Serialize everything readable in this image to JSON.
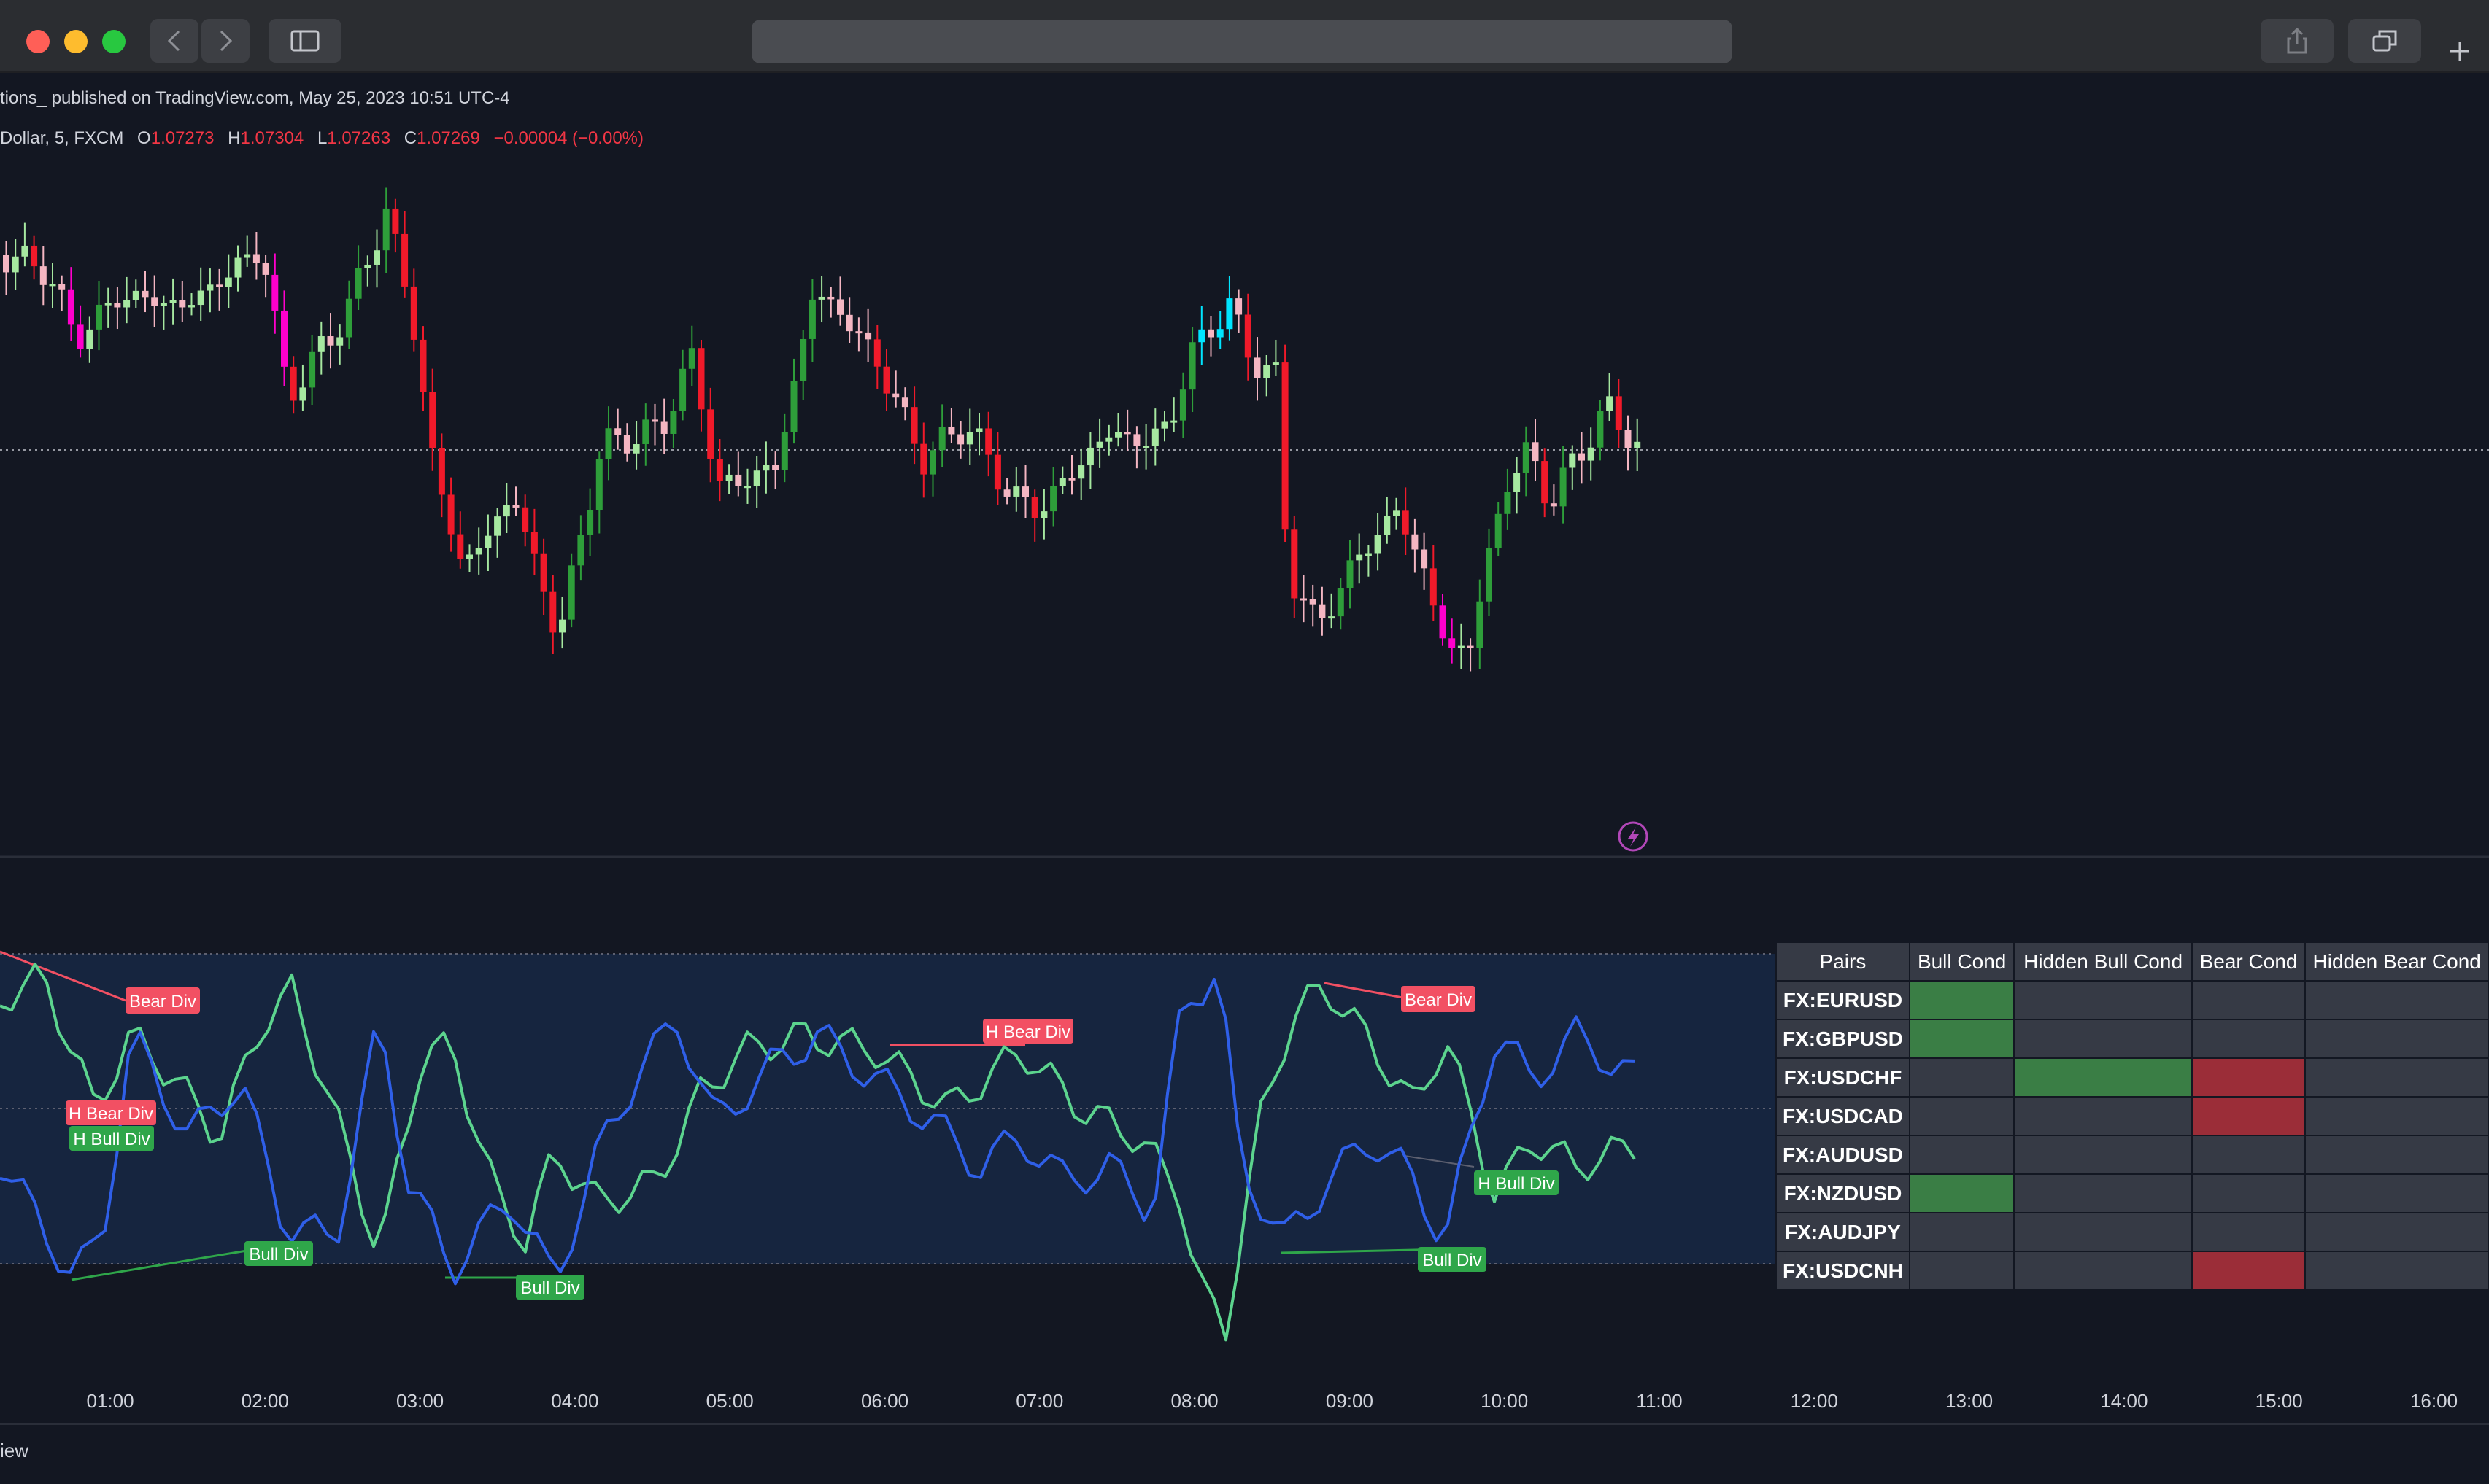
{
  "window": {
    "controls": [
      "close",
      "minimize",
      "zoom"
    ],
    "toolbar_icons": [
      "back-icon",
      "forward-icon",
      "sidebar-icon",
      "share-icon",
      "tabs-icon",
      "new-tab-icon"
    ]
  },
  "header": {
    "publish_text": "tions_ published on TradingView.com, May 25, 2023 10:51 UTC-4",
    "symbol_text": "Dollar, 5, FXCM",
    "open_label": "O",
    "open_value": "1.07273",
    "high_label": "H",
    "high_value": "1.07304",
    "low_label": "L",
    "low_value": "1.07263",
    "close_label": "C",
    "close_value": "1.07269",
    "change_text": "−0.00004 (−0.00%)"
  },
  "chart_data": {
    "type": "candlestick",
    "timeframe": "5",
    "x_ticks": [
      "01:00",
      "02:00",
      "03:00",
      "04:00",
      "05:00",
      "06:00",
      "07:00",
      "08:00",
      "09:00",
      "10:00",
      "11:00",
      "12:00",
      "13:00",
      "14:00",
      "15:00",
      "16:00"
    ],
    "last_price_line": true,
    "colors": {
      "bull": "#2e9e3a",
      "bull_light": "#a6e8a0",
      "bear": "#f01a2a",
      "bear_light": "#f4b6c2",
      "extreme_bear": "#ff00cc",
      "extreme_bull": "#00e5ff",
      "osc_fast": "#2f5fe8",
      "osc_slow": "#5cd48e",
      "label_bull": "#2fa64a",
      "label_bear": "#f25063"
    },
    "oscillator_labels": [
      {
        "text": "Bear Div",
        "kind": "bear"
      },
      {
        "text": "H Bear Div",
        "kind": "bear"
      },
      {
        "text": "H Bull Div",
        "kind": "bull"
      },
      {
        "text": "Bull Div",
        "kind": "bull"
      },
      {
        "text": "Bull Div",
        "kind": "bull"
      },
      {
        "text": "H Bear Div",
        "kind": "bear"
      },
      {
        "text": "Bear Div",
        "kind": "bear"
      },
      {
        "text": "H Bull Div",
        "kind": "bull"
      },
      {
        "text": "Bull Div",
        "kind": "bull"
      }
    ]
  },
  "table": {
    "headers": [
      "Pairs",
      "Bull Cond",
      "Hidden Bull Cond",
      "Bear Cond",
      "Hidden Bear Cond"
    ],
    "rows": [
      {
        "pair": "FX:EURUSD",
        "bull": true,
        "hidden_bull": false,
        "bear": false,
        "hidden_bear": false
      },
      {
        "pair": "FX:GBPUSD",
        "bull": true,
        "hidden_bull": false,
        "bear": false,
        "hidden_bear": false
      },
      {
        "pair": "FX:USDCHF",
        "bull": false,
        "hidden_bull": true,
        "bear": true,
        "hidden_bear": false
      },
      {
        "pair": "FX:USDCAD",
        "bull": false,
        "hidden_bull": false,
        "bear": true,
        "hidden_bear": false
      },
      {
        "pair": "FX:AUDUSD",
        "bull": false,
        "hidden_bull": false,
        "bear": false,
        "hidden_bear": false
      },
      {
        "pair": "FX:NZDUSD",
        "bull": true,
        "hidden_bull": false,
        "bear": false,
        "hidden_bear": false
      },
      {
        "pair": "FX:AUDJPY",
        "bull": false,
        "hidden_bull": false,
        "bear": false,
        "hidden_bear": false
      },
      {
        "pair": "FX:USDCNH",
        "bull": false,
        "hidden_bull": false,
        "bear": true,
        "hidden_bear": false
      }
    ]
  },
  "footer": {
    "text": "iew"
  }
}
